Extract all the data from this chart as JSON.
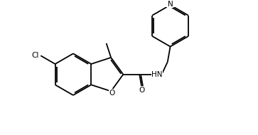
{
  "bg": "#ffffff",
  "lc": "#000000",
  "lw": 1.3,
  "figsize": [
    3.63,
    1.9
  ],
  "dpi": 100,
  "xlim": [
    0,
    9.5
  ],
  "ylim": [
    0,
    5.0
  ],
  "bl": 0.82
}
